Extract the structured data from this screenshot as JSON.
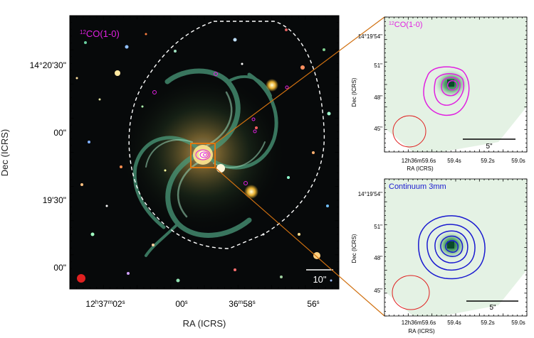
{
  "main_panel": {
    "tracer_prefix": "12",
    "tracer_label": "CO(1-0)",
    "y_axis_label": "Dec (ICRS)",
    "x_axis_label": "RA (ICRS)",
    "y_ticks": [
      "14°20'30\"",
      "00\"",
      "19'30\"",
      "00\""
    ],
    "x_ticks": [
      {
        "major": "12",
        "h": "h",
        "m_val": "37",
        "m": "m",
        "s_val": "02",
        "s": "s"
      },
      {
        "major": "",
        "h": "",
        "m_val": "",
        "m": "",
        "s_val": "00",
        "s": "s"
      },
      {
        "major": "",
        "h": "",
        "m_val": "36",
        "m": "m",
        "s_val": "58",
        "s": "s"
      },
      {
        "major": "",
        "h": "",
        "m_val": "",
        "m": "",
        "s_val": "56",
        "s": "s"
      }
    ],
    "scale_bar_label": "10\""
  },
  "inset_top": {
    "tracer_prefix": "12",
    "tracer_label": "CO(1-0)",
    "y_axis_label": "Dec (ICRS)",
    "x_axis_label": "RA (ICRS)",
    "y_ticks": [
      "14°19'54\"",
      "51\"",
      "48\"",
      "45\""
    ],
    "x_ticks": [
      "12h36m59.6s",
      "59.4s",
      "59.2s",
      "59.0s"
    ],
    "scale_bar_label": "5\""
  },
  "inset_bottom": {
    "tracer_label": "Continuum 3mm",
    "y_axis_label": "Dec (ICRS)",
    "x_axis_label": "RA (ICRS)",
    "y_ticks": [
      "14°19'54\"",
      "51\"",
      "48\"",
      "45\""
    ],
    "x_ticks": [
      "12h36m59.6s",
      "59.4s",
      "59.2s",
      "59.0s"
    ],
    "scale_bar_label": "5\""
  },
  "colors": {
    "co_contour": "#e020e0",
    "continuum_contour": "#1a1ad0",
    "beam": "#e02020",
    "zoom_lines": "#d07010",
    "footprint": "#ffffff"
  }
}
